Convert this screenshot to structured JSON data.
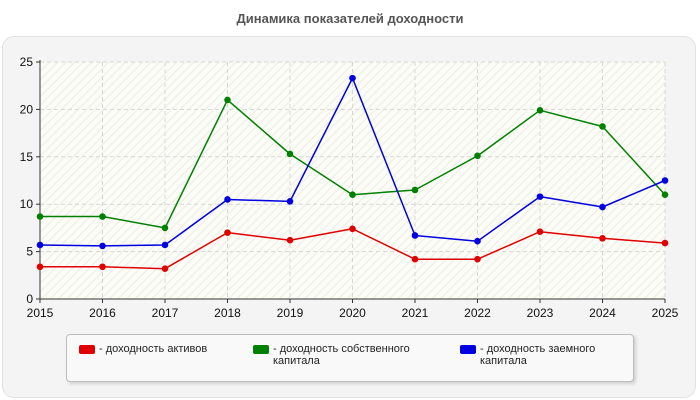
{
  "chart_data": {
    "type": "line",
    "title": "Динамика показателей доходности",
    "xlabel": "",
    "ylabel": "",
    "x": [
      "2015",
      "2016",
      "2017",
      "2018",
      "2019",
      "2020",
      "2021",
      "2022",
      "2023",
      "2024",
      "2025"
    ],
    "ylim": [
      0,
      25
    ],
    "yticks": [
      "0",
      "5",
      "10",
      "15",
      "20",
      "25"
    ],
    "grid": true,
    "legend_position": "bottom",
    "series": [
      {
        "name": "- доходность активов",
        "color": "#e00000",
        "values": [
          3.4,
          3.4,
          3.2,
          7.0,
          6.2,
          7.4,
          4.2,
          4.2,
          7.1,
          6.4,
          5.9
        ]
      },
      {
        "name": "- доходность собственного капитала",
        "color": "#008000",
        "values": [
          8.7,
          8.7,
          7.5,
          21.0,
          15.3,
          11.0,
          11.5,
          15.1,
          19.9,
          18.2,
          11.0
        ]
      },
      {
        "name": "- доходность заемного капитала",
        "color": "#0000e0",
        "values": [
          5.7,
          5.6,
          5.7,
          10.5,
          10.3,
          23.3,
          6.7,
          6.1,
          10.8,
          9.7,
          12.5
        ]
      }
    ]
  }
}
